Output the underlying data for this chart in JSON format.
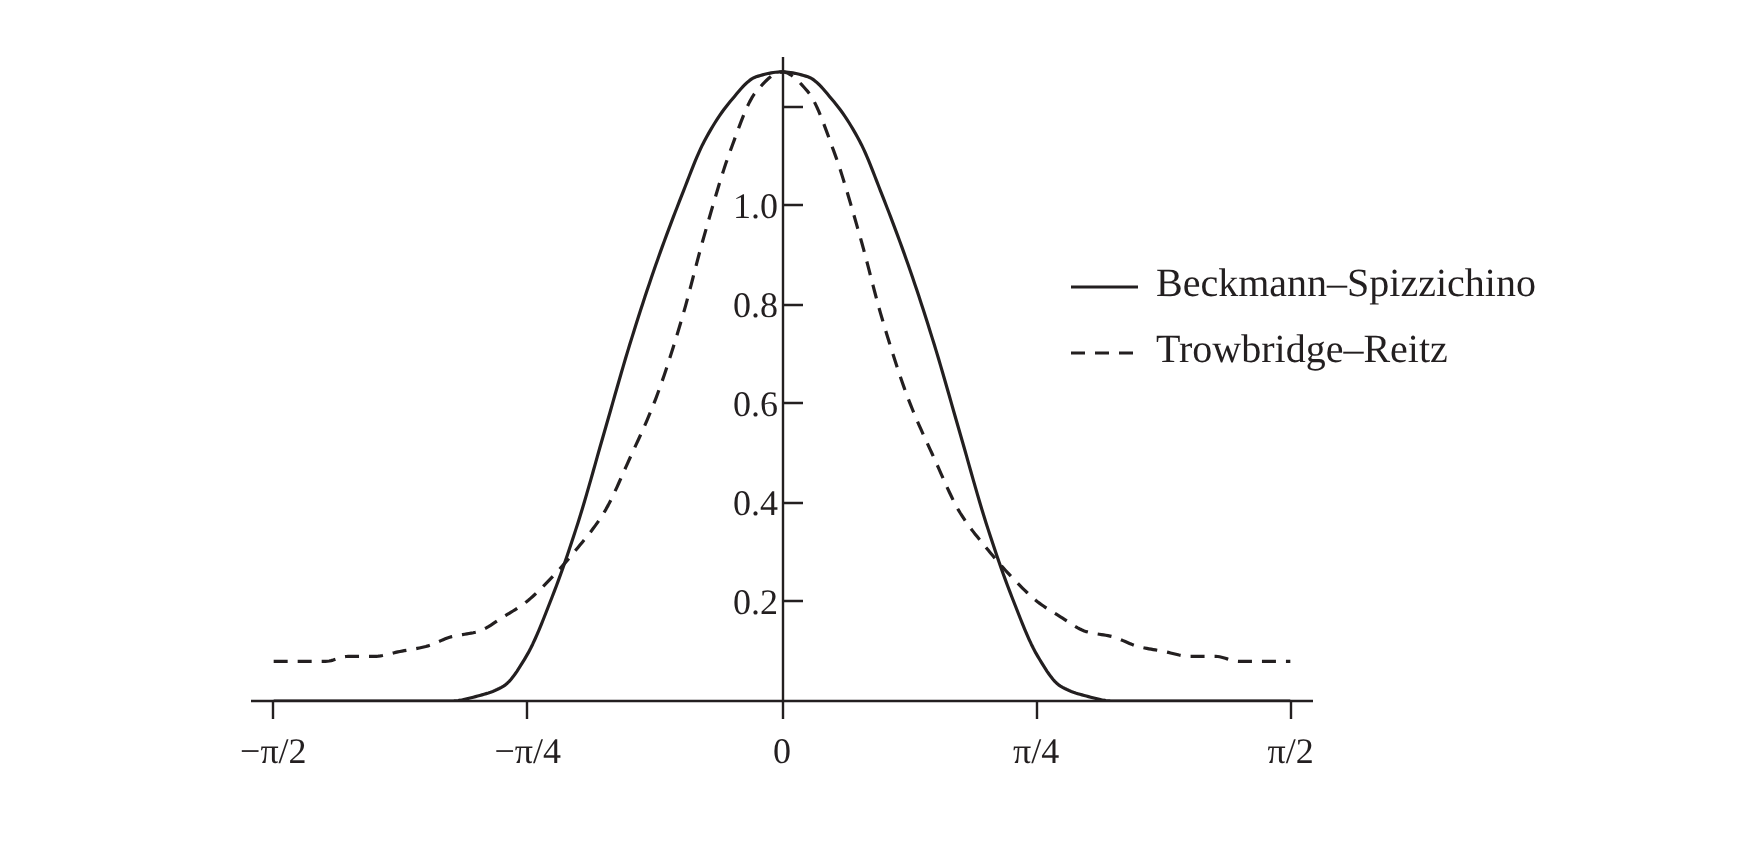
{
  "chart_data": {
    "type": "line",
    "x": [
      -1.57,
      -1.49,
      -1.41,
      -1.34,
      -1.26,
      -1.18,
      -1.1,
      -1.02,
      -0.94,
      -0.86,
      -0.79,
      -0.71,
      -0.63,
      -0.55,
      -0.47,
      -0.39,
      -0.31,
      -0.24,
      -0.16,
      -0.08,
      0,
      0.08,
      0.16,
      0.24,
      0.31,
      0.39,
      0.47,
      0.55,
      0.63,
      0.71,
      0.79,
      0.86,
      0.94,
      1.02,
      1.1,
      1.18,
      1.26,
      1.34,
      1.41,
      1.49,
      1.57
    ],
    "series": [
      {
        "name": "Beckmann–Spizzichino",
        "color": "#231f20",
        "line_style": "solid",
        "values": [
          0,
          0,
          0,
          0,
          0,
          0,
          0,
          0,
          0.01,
          0.03,
          0.09,
          0.21,
          0.36,
          0.54,
          0.72,
          0.88,
          1.02,
          1.13,
          1.21,
          1.26,
          1.27,
          1.26,
          1.21,
          1.13,
          1.02,
          0.88,
          0.72,
          0.54,
          0.36,
          0.21,
          0.09,
          0.03,
          0.01,
          0,
          0,
          0,
          0,
          0,
          0,
          0,
          0
        ]
      },
      {
        "name": "Trowbridge–Reitz",
        "color": "#231f20",
        "line_style": "dashed",
        "values": [
          0.08,
          0.08,
          0.08,
          0.09,
          0.09,
          0.1,
          0.11,
          0.13,
          0.14,
          0.17,
          0.2,
          0.25,
          0.31,
          0.38,
          0.49,
          0.61,
          0.77,
          0.94,
          1.11,
          1.23,
          1.27,
          1.23,
          1.11,
          0.94,
          0.77,
          0.61,
          0.49,
          0.38,
          0.31,
          0.25,
          0.2,
          0.17,
          0.14,
          0.13,
          0.11,
          0.1,
          0.09,
          0.09,
          0.08,
          0.08,
          0.08
        ]
      }
    ],
    "xlim": [
      -1.64,
      1.64
    ],
    "ylim": [
      0,
      1.3
    ],
    "xticks": [
      {
        "value": -1.571,
        "label": "−π/2"
      },
      {
        "value": -0.785,
        "label": "−π/4"
      },
      0,
      {
        "value": 0.785,
        "label": "π/4"
      },
      {
        "value": 1.571,
        "label": "π/2"
      }
    ],
    "yticks": [
      0.2,
      0.4,
      0.6,
      0.8,
      {
        "value": 1.0,
        "label": "1.0"
      },
      {
        "value": 1.2,
        "label": null
      }
    ],
    "grid": false,
    "legend": "top right"
  }
}
